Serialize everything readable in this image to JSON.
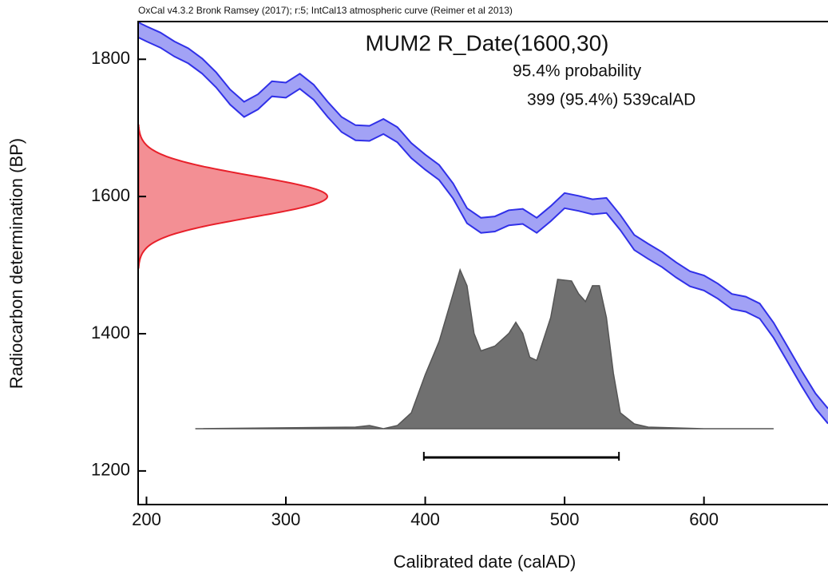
{
  "chart_data": {
    "type": "calibration",
    "header": "OxCal v4.3.2 Bronk Ramsey (2017); r:5; IntCal13 atmospheric curve (Reimer et al 2013)",
    "title": "MUM2 R_Date(1600,30)",
    "probability_label": "95.4% probability",
    "range_label": "399 (95.4%) 539calAD",
    "xlabel": "Calibrated date (calAD)",
    "ylabel": "Radiocarbon determination (BP)",
    "xlim": [
      194,
      689
    ],
    "ylim": [
      1151,
      1855
    ],
    "xticks": [
      200,
      300,
      400,
      500,
      600
    ],
    "yticks": [
      1200,
      1400,
      1600,
      1800
    ],
    "curve": {
      "color": "#3030e8",
      "x": [
        194,
        200,
        210,
        220,
        230,
        240,
        250,
        260,
        270,
        280,
        290,
        300,
        310,
        320,
        330,
        340,
        350,
        360,
        370,
        380,
        390,
        400,
        410,
        420,
        430,
        440,
        450,
        460,
        470,
        480,
        490,
        500,
        510,
        520,
        530,
        540,
        550,
        560,
        570,
        580,
        590,
        600,
        610,
        620,
        630,
        640,
        650,
        660,
        670,
        680,
        689
      ],
      "upper": [
        1854,
        1848,
        1839,
        1826,
        1816,
        1801,
        1781,
        1756,
        1738,
        1749,
        1768,
        1766,
        1779,
        1763,
        1738,
        1716,
        1704,
        1703,
        1713,
        1701,
        1678,
        1661,
        1646,
        1619,
        1583,
        1569,
        1571,
        1580,
        1582,
        1569,
        1586,
        1605,
        1601,
        1596,
        1598,
        1573,
        1544,
        1531,
        1519,
        1504,
        1491,
        1485,
        1473,
        1458,
        1454,
        1444,
        1416,
        1381,
        1346,
        1313,
        1291
      ],
      "lower": [
        1832,
        1826,
        1817,
        1804,
        1794,
        1779,
        1759,
        1734,
        1716,
        1727,
        1746,
        1744,
        1757,
        1741,
        1716,
        1694,
        1682,
        1681,
        1691,
        1679,
        1656,
        1639,
        1624,
        1597,
        1561,
        1547,
        1549,
        1558,
        1560,
        1547,
        1564,
        1583,
        1579,
        1574,
        1576,
        1551,
        1522,
        1509,
        1497,
        1482,
        1469,
        1463,
        1451,
        1436,
        1432,
        1422,
        1394,
        1359,
        1324,
        1291,
        1269
      ]
    },
    "r_date": {
      "mean": 1600,
      "sd": 30,
      "color": "#e8202a"
    },
    "posterior": {
      "color": "#707070",
      "x": [
        235,
        350,
        360,
        370,
        380,
        390,
        400,
        410,
        420,
        425,
        430,
        435,
        440,
        450,
        460,
        465,
        470,
        475,
        480,
        490,
        495,
        505,
        510,
        515,
        520,
        525,
        530,
        535,
        540,
        550,
        560,
        600,
        650
      ],
      "values": [
        0,
        0.01,
        0.02,
        0,
        0.02,
        0.1,
        0.34,
        0.55,
        0.85,
        1,
        0.9,
        0.6,
        0.49,
        0.52,
        0.6,
        0.67,
        0.6,
        0.45,
        0.43,
        0.7,
        0.94,
        0.93,
        0.85,
        0.8,
        0.9,
        0.9,
        0.7,
        0.35,
        0.1,
        0.03,
        0.01,
        0,
        0
      ]
    },
    "range": [
      399,
      539
    ]
  }
}
